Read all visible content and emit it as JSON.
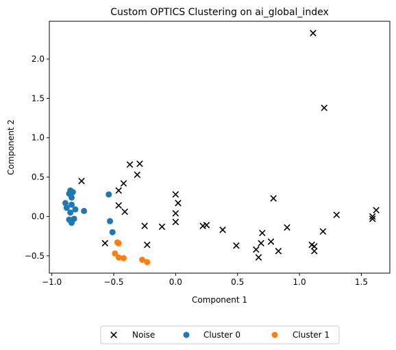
{
  "chart_data": {
    "type": "scatter",
    "title": "Custom OPTICS Clustering on ai_global_index",
    "xlabel": "Component 1",
    "ylabel": "Component 2",
    "xlim": [
      -1.02,
      1.73
    ],
    "ylim": [
      -0.72,
      2.48
    ],
    "xticks": [
      -1.0,
      -0.5,
      0.0,
      0.5,
      1.0,
      1.5
    ],
    "xtick_labels": [
      "−1.0",
      "−0.5",
      "0.0",
      "0.5",
      "1.0",
      "1.5"
    ],
    "yticks": [
      -0.5,
      0.0,
      0.5,
      1.0,
      1.5,
      2.0
    ],
    "ytick_labels": [
      "−0.5",
      "0.0",
      "0.5",
      "1.0",
      "1.5",
      "2.0"
    ],
    "grid": false,
    "legend_position": "bottom-center",
    "series": [
      {
        "name": "Noise",
        "marker": "x",
        "color": "#000000",
        "points": [
          [
            1.11,
            2.33
          ],
          [
            1.2,
            1.38
          ],
          [
            -0.37,
            0.66
          ],
          [
            -0.29,
            0.67
          ],
          [
            -0.31,
            0.53
          ],
          [
            -0.76,
            0.45
          ],
          [
            -0.42,
            0.42
          ],
          [
            -0.46,
            0.33
          ],
          [
            -0.46,
            0.14
          ],
          [
            -0.41,
            0.06
          ],
          [
            0.0,
            0.28
          ],
          [
            0.02,
            0.17
          ],
          [
            0.0,
            0.04
          ],
          [
            0.0,
            -0.07
          ],
          [
            0.79,
            0.23
          ],
          [
            -0.25,
            -0.12
          ],
          [
            -0.11,
            -0.13
          ],
          [
            0.22,
            -0.12
          ],
          [
            0.25,
            -0.11
          ],
          [
            0.38,
            -0.17
          ],
          [
            0.49,
            -0.37
          ],
          [
            0.65,
            -0.42
          ],
          [
            0.69,
            -0.34
          ],
          [
            0.7,
            -0.21
          ],
          [
            0.77,
            -0.32
          ],
          [
            0.67,
            -0.52
          ],
          [
            0.83,
            -0.44
          ],
          [
            0.9,
            -0.14
          ],
          [
            1.1,
            -0.36
          ],
          [
            1.12,
            -0.38
          ],
          [
            1.12,
            -0.44
          ],
          [
            1.19,
            -0.19
          ],
          [
            1.3,
            0.02
          ],
          [
            1.59,
            0.0
          ],
          [
            1.59,
            -0.03
          ],
          [
            1.62,
            0.08
          ],
          [
            -0.57,
            -0.34
          ],
          [
            -0.23,
            -0.36
          ]
        ]
      },
      {
        "name": "Cluster 0",
        "marker": "o",
        "color": "#1f77b4",
        "points": [
          [
            -0.86,
            0.29
          ],
          [
            -0.85,
            0.33
          ],
          [
            -0.83,
            0.31
          ],
          [
            -0.88,
            0.11
          ],
          [
            -0.89,
            0.17
          ],
          [
            -0.84,
            0.24
          ],
          [
            -0.84,
            0.15
          ],
          [
            -0.81,
            0.09
          ],
          [
            -0.85,
            0.05
          ],
          [
            -0.74,
            0.07
          ],
          [
            -0.86,
            -0.04
          ],
          [
            -0.82,
            -0.03
          ],
          [
            -0.84,
            -0.08
          ],
          [
            -0.54,
            0.28
          ],
          [
            -0.53,
            -0.06
          ],
          [
            -0.51,
            -0.2
          ]
        ]
      },
      {
        "name": "Cluster 1",
        "marker": "o",
        "color": "#ff7f0e",
        "points": [
          [
            -0.47,
            -0.33
          ],
          [
            -0.46,
            -0.34
          ],
          [
            -0.49,
            -0.47
          ],
          [
            -0.46,
            -0.52
          ],
          [
            -0.42,
            -0.53
          ],
          [
            -0.27,
            -0.55
          ],
          [
            -0.23,
            -0.58
          ]
        ]
      }
    ]
  }
}
